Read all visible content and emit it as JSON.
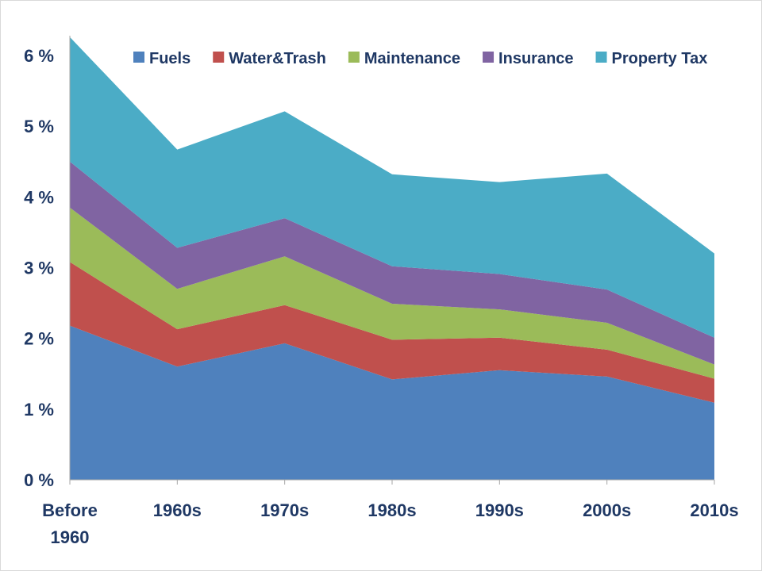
{
  "chart_data": {
    "type": "area",
    "stacked": true,
    "title": "",
    "xlabel": "",
    "ylabel": "",
    "categories": [
      [
        "Before",
        "1960"
      ],
      [
        "1960s"
      ],
      [
        "1970s"
      ],
      [
        "1980s"
      ],
      [
        "1990s"
      ],
      [
        "2000s"
      ],
      [
        "2010s"
      ]
    ],
    "y_ticks": [
      0,
      1,
      2,
      3,
      4,
      5,
      6
    ],
    "y_tick_suffix": " %",
    "ylim": [
      0,
      6.28
    ],
    "grid": false,
    "legend_position": "top",
    "series": [
      {
        "name": "Fuels",
        "color": "#4f81bd",
        "values": [
          2.18,
          1.6,
          1.93,
          1.42,
          1.55,
          1.46,
          1.09
        ]
      },
      {
        "name": "Water&Trash",
        "color": "#c0504d",
        "values": [
          0.9,
          0.53,
          0.54,
          0.56,
          0.46,
          0.38,
          0.34
        ]
      },
      {
        "name": "Maintenance",
        "color": "#9bbb59",
        "values": [
          0.77,
          0.57,
          0.69,
          0.51,
          0.4,
          0.38,
          0.2
        ]
      },
      {
        "name": "Insurance",
        "color": "#8064a2",
        "values": [
          0.65,
          0.58,
          0.54,
          0.53,
          0.5,
          0.47,
          0.38
        ]
      },
      {
        "name": "Property Tax",
        "color": "#4bacc6",
        "values": [
          1.76,
          1.39,
          1.51,
          1.3,
          1.3,
          1.64,
          1.19
        ]
      }
    ]
  }
}
